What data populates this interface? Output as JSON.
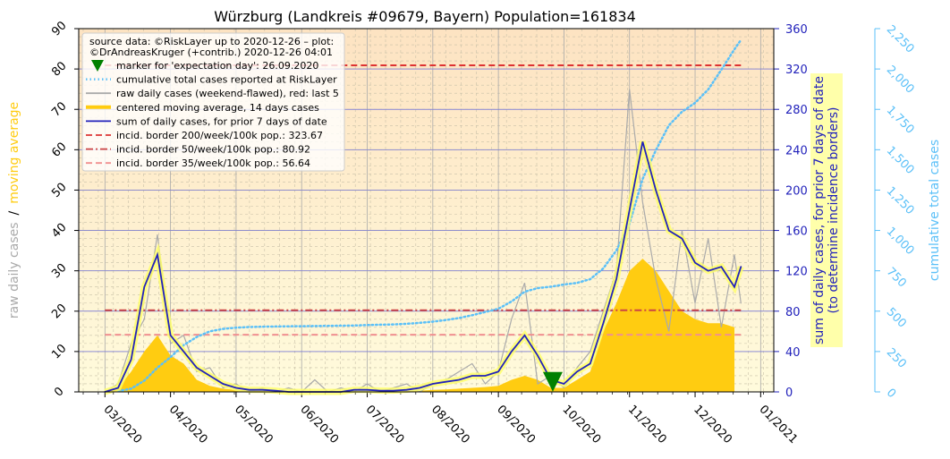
{
  "chart_data": {
    "type": "line",
    "title": "Würzburg (Landkreis #09679, Bayern) Population=161834",
    "legend_note": [
      "source data: ©RiskLayer up to 2020-12-26 – plot:",
      "©DrAndreasKruger (+contrib.) 2020-12-26 04:01"
    ],
    "ylabel": [
      "raw daily cases",
      "/",
      "moving average"
    ],
    "y2label": [
      "sum of daily cases, for prior 7 days of date",
      "(to determine incidence borders)"
    ],
    "y3label": "cumulative total cases",
    "x": [
      3.0,
      3.2,
      3.4,
      3.6,
      3.8,
      4.0,
      4.2,
      4.4,
      4.6,
      4.8,
      5.0,
      5.2,
      5.4,
      5.6,
      5.8,
      6.0,
      6.2,
      6.4,
      6.6,
      6.8,
      7.0,
      7.2,
      7.4,
      7.6,
      7.8,
      8.0,
      8.2,
      8.4,
      8.6,
      8.8,
      9.0,
      9.2,
      9.4,
      9.6,
      9.8,
      10.0,
      10.2,
      10.4,
      10.6,
      10.8,
      11.0,
      11.2,
      11.4,
      11.6,
      11.8,
      12.0,
      12.2,
      12.4,
      12.6,
      12.7
    ],
    "xlim": [
      2.6,
      13.2
    ],
    "xticks": [
      {
        "value": 3,
        "label": "03/2020"
      },
      {
        "value": 4,
        "label": "04/2020"
      },
      {
        "value": 5,
        "label": "05/2020"
      },
      {
        "value": 6,
        "label": "06/2020"
      },
      {
        "value": 7,
        "label": "07/2020"
      },
      {
        "value": 8,
        "label": "08/2020"
      },
      {
        "value": 9,
        "label": "09/2020"
      },
      {
        "value": 10,
        "label": "10/2020"
      },
      {
        "value": 11,
        "label": "11/2020"
      },
      {
        "value": 12,
        "label": "12/2020"
      },
      {
        "value": 13,
        "label": "01/2021"
      }
    ],
    "ylim": [
      0,
      90
    ],
    "yticks": [
      0,
      10,
      20,
      30,
      40,
      50,
      60,
      70,
      80,
      90
    ],
    "y2lim": [
      0,
      360
    ],
    "y2ticks": [
      0,
      40,
      80,
      120,
      160,
      200,
      240,
      280,
      320,
      360
    ],
    "y3lim": [
      0,
      2250
    ],
    "y3ticks": [
      0,
      250,
      500,
      750,
      {
        "value": 1000,
        "label": "1,000"
      },
      {
        "value": 1250,
        "label": "1,250"
      },
      {
        "value": 1500,
        "label": "1,500"
      },
      {
        "value": 1750,
        "label": "1,750"
      },
      {
        "value": 2000,
        "label": "2,000"
      },
      {
        "value": 2250,
        "label": "2,250"
      }
    ],
    "grid": true,
    "legend": "upper left",
    "series": [
      {
        "name": "marker for 'expectation day': 26.09.2020",
        "type": "marker",
        "color": "#008000",
        "x": [
          9.83
        ],
        "values": [
          2.5
        ]
      },
      {
        "name": "cumulative total cases reported at RiskLayer",
        "type": "dotted",
        "color": "#5bc0f8",
        "axis": "y3",
        "values": [
          null,
          5,
          20,
          70,
          150,
          215,
          290,
          340,
          375,
          390,
          398,
          402,
          404,
          405,
          406,
          407,
          408,
          409,
          410,
          411,
          414,
          416,
          418,
          422,
          428,
          435,
          445,
          458,
          475,
          495,
          515,
          560,
          620,
          643,
          652,
          665,
          675,
          698,
          765,
          876,
          1042,
          1319,
          1496,
          1651,
          1735,
          1790,
          1873,
          1995,
          2122,
          2180
        ]
      },
      {
        "name": "raw daily cases (weekend-flawed), red: last 5",
        "type": "line",
        "color": "#aaaaaa",
        "values": [
          0,
          2,
          12,
          18,
          39,
          12,
          14,
          5,
          6,
          1,
          2,
          0,
          1,
          0,
          1,
          0,
          3,
          0,
          1,
          0,
          2,
          0,
          1,
          2,
          0,
          2,
          3,
          5,
          7,
          2,
          5,
          18,
          27,
          2,
          4,
          1,
          6,
          10,
          20,
          30,
          75,
          47,
          28,
          15,
          40,
          22,
          38,
          16,
          34,
          22
        ]
      },
      {
        "name": "centered moving average, 14 days cases",
        "type": "area",
        "color": "#ffcc11",
        "values": [
          0,
          1,
          5,
          10,
          14,
          9,
          7,
          3,
          1.5,
          0.8,
          0.5,
          0.3,
          0.2,
          0.1,
          0,
          0,
          0,
          0,
          0,
          0.1,
          0.1,
          0.1,
          0.1,
          0.2,
          0.3,
          0.5,
          0.6,
          0.8,
          1,
          1.2,
          1.5,
          3,
          4,
          3,
          1,
          1,
          3,
          5,
          15,
          22,
          30,
          33,
          30,
          25,
          20,
          18,
          17,
          17,
          16,
          null
        ]
      },
      {
        "name": "sum of daily cases, for prior 7 days of date",
        "type": "line",
        "color": "#2222bb",
        "axis": "y2",
        "values": [
          0,
          4,
          32,
          104,
          136,
          56,
          40,
          24,
          16,
          8,
          4,
          2,
          2,
          1.2,
          0,
          0,
          0,
          0,
          0,
          2,
          2,
          1.2,
          1.2,
          2,
          4,
          8,
          10,
          12,
          16,
          16,
          20,
          40,
          56,
          36,
          12,
          8,
          20,
          28,
          68,
          112,
          180,
          248,
          200,
          160,
          152,
          128,
          120,
          124,
          104,
          124
        ]
      },
      {
        "name": "incid. border 200/week/100k pop.: 323.67",
        "type": "hline",
        "color": "#dd3333",
        "axis": "y2",
        "dash": "dashed",
        "value": 323.67
      },
      {
        "name": "incid. border 50/week/100k pop.: 80.92",
        "type": "hline",
        "color": "#cc4444",
        "axis": "y2",
        "dash": "dashdot",
        "value": 80.92
      },
      {
        "name": "incid. border 35/week/100k pop.: 56.64",
        "type": "hline",
        "color": "#f09090",
        "axis": "y2",
        "dash": "dashed",
        "value": 56.64
      }
    ]
  }
}
